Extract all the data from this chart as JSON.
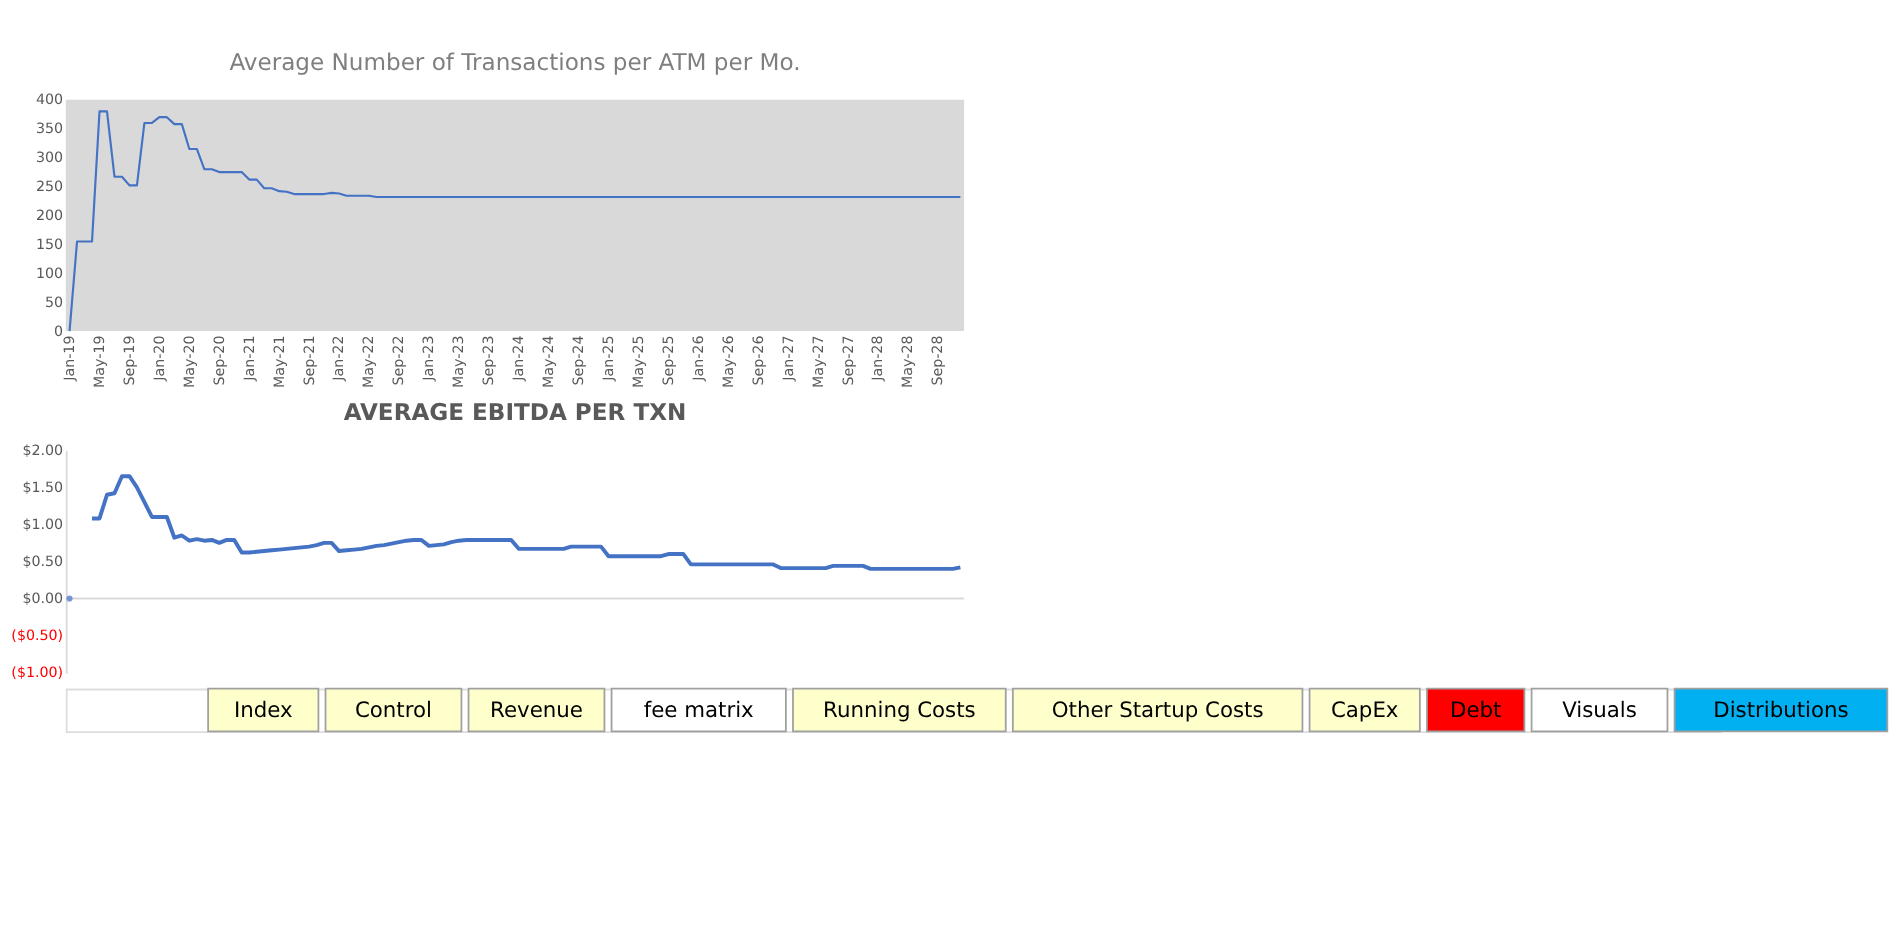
{
  "chart_data": [
    {
      "type": "line",
      "title": "Average Number of Transactions per ATM per Mo.",
      "categories": [
        "Jan-19",
        null,
        null,
        null,
        "May-19",
        null,
        null,
        null,
        "Sep-19",
        null,
        null,
        null,
        "Jan-20",
        null,
        null,
        null,
        "May-20",
        null,
        null,
        null,
        "Sep-20",
        null,
        null,
        null,
        "Jan-21",
        null,
        null,
        null,
        "May-21",
        null,
        null,
        null,
        "Sep-21",
        null,
        null,
        null,
        "Jan-22",
        null,
        null,
        null,
        "May-22",
        null,
        null,
        null,
        "Sep-22",
        null,
        null,
        null,
        "Jan-23",
        null,
        null,
        null,
        "May-23",
        null,
        null,
        null,
        "Sep-23",
        null,
        null,
        null,
        "Jan-24",
        null,
        null,
        null,
        "May-24",
        null,
        null,
        null,
        "Sep-24",
        null,
        null,
        null,
        "Jan-25",
        null,
        null,
        null,
        "May-25",
        null,
        null,
        null,
        "Sep-25",
        null,
        null,
        null,
        "Jan-26",
        null,
        null,
        null,
        "May-26",
        null,
        null,
        null,
        "Sep-26",
        null,
        null,
        null,
        "Jan-27",
        null,
        null,
        null,
        "May-27",
        null,
        null,
        null,
        "Sep-27",
        null,
        null,
        null,
        "Jan-28",
        null,
        null,
        null,
        "May-28",
        null,
        null,
        null,
        "Sep-28",
        null,
        null,
        null
      ],
      "series": [
        {
          "color": "#4472c4",
          "values": [
            0,
            155,
            155,
            155,
            380,
            380,
            267,
            267,
            252,
            252,
            360,
            360,
            370,
            370,
            358,
            358,
            315,
            315,
            280,
            280,
            275,
            275,
            275,
            275,
            262,
            262,
            247,
            247,
            242,
            241,
            237,
            237,
            237,
            237,
            237,
            239,
            238,
            234,
            234,
            234,
            234,
            232,
            232,
            232,
            232,
            232,
            232,
            232,
            232,
            232,
            232,
            232,
            232,
            232,
            232,
            232,
            232,
            232,
            232,
            232,
            232,
            232,
            232,
            232,
            232,
            232,
            232,
            232,
            232,
            232,
            232,
            232,
            232,
            232,
            232,
            232,
            232,
            232,
            232,
            232,
            232,
            232,
            232,
            232,
            232,
            232,
            232,
            232,
            232,
            232,
            232,
            232,
            232,
            232,
            232,
            232,
            232,
            232,
            232,
            232,
            232,
            232,
            232,
            232,
            232,
            232,
            232,
            232,
            232,
            232,
            232,
            232,
            232,
            232,
            232,
            232,
            232,
            232,
            232,
            232
          ]
        }
      ],
      "ylim": [
        0,
        400
      ],
      "yticks": [
        0,
        50,
        100,
        150,
        200,
        250,
        300,
        350,
        400
      ],
      "grid": false,
      "legend": false
    },
    {
      "type": "line",
      "title": "AVERAGE EBITDA PER TXN",
      "categories": [
        null,
        null,
        null,
        null,
        null,
        null,
        null,
        null,
        null,
        null,
        null,
        null,
        null,
        null,
        null,
        null,
        null,
        null,
        null,
        null,
        null,
        null,
        null,
        null,
        null,
        null,
        null,
        null,
        null,
        null,
        null,
        null,
        null,
        null,
        null,
        null,
        null,
        null,
        null,
        null,
        null,
        null,
        null,
        null,
        null,
        null,
        null,
        null,
        null,
        null,
        null,
        null,
        null,
        null,
        null,
        null,
        null,
        null,
        null,
        null,
        null,
        null,
        null,
        null,
        null,
        null,
        null,
        null,
        null,
        null,
        null,
        null,
        null,
        null,
        null,
        null,
        null,
        null,
        null,
        null,
        null,
        null,
        null,
        null,
        null,
        null,
        null,
        null,
        null,
        null,
        null,
        null,
        null,
        null,
        null,
        null,
        null,
        null,
        null,
        null,
        null,
        null,
        null,
        null,
        null,
        null,
        null,
        null,
        null,
        null,
        null,
        null,
        null,
        null,
        null,
        null,
        null,
        null,
        null,
        null
      ],
      "series": [
        {
          "color": "#4472c4",
          "values": [
            0,
            null,
            null,
            1.08,
            1.08,
            1.4,
            1.42,
            1.65,
            1.65,
            1.5,
            1.3,
            1.1,
            1.1,
            1.1,
            0.82,
            0.85,
            0.78,
            0.8,
            0.78,
            0.79,
            0.75,
            0.79,
            0.79,
            0.62,
            0.62,
            0.63,
            0.64,
            0.65,
            0.66,
            0.67,
            0.68,
            0.69,
            0.7,
            0.72,
            0.75,
            0.75,
            0.64,
            0.65,
            0.66,
            0.67,
            0.69,
            0.71,
            0.72,
            0.74,
            0.76,
            0.78,
            0.79,
            0.79,
            0.71,
            0.72,
            0.73,
            0.76,
            0.78,
            0.79,
            0.79,
            0.79,
            0.79,
            0.79,
            0.79,
            0.79,
            0.67,
            0.67,
            0.67,
            0.67,
            0.67,
            0.67,
            0.67,
            0.7,
            0.7,
            0.7,
            0.7,
            0.7,
            0.57,
            0.57,
            0.57,
            0.57,
            0.57,
            0.57,
            0.57,
            0.57,
            0.6,
            0.6,
            0.6,
            0.46,
            0.46,
            0.46,
            0.46,
            0.46,
            0.46,
            0.46,
            0.46,
            0.46,
            0.46,
            0.46,
            0.46,
            0.41,
            0.41,
            0.41,
            0.41,
            0.41,
            0.41,
            0.41,
            0.44,
            0.44,
            0.44,
            0.44,
            0.44,
            0.4,
            0.4,
            0.4,
            0.4,
            0.4,
            0.4,
            0.4,
            0.4,
            0.4,
            0.4,
            0.4,
            0.4,
            0.42
          ]
        }
      ],
      "ylim": [
        -1,
        2
      ],
      "yticks": [
        {
          "value": 2,
          "label": "$2.00"
        },
        {
          "value": 1.5,
          "label": "$1.50"
        },
        {
          "value": 1,
          "label": "$1.00"
        },
        {
          "value": 0.5,
          "label": "$0.50"
        },
        {
          "value": 0,
          "label": "$0.00"
        },
        {
          "value": -0.5,
          "label": "($0.50)"
        },
        {
          "value": -1,
          "label": "($1.00)"
        }
      ],
      "ref_lines": [
        {
          "axis": "y",
          "value": 0,
          "color": "#d9d9d9"
        }
      ],
      "grid": false,
      "legend": false
    },
    {
      "type": "other",
      "annotations": [
        "Index",
        "Control",
        "Revenue",
        "fee matrix",
        "Running Costs",
        "Other Startup Costs",
        "CapEx",
        "Debt",
        "Visuals",
        "Distributions"
      ],
      "colors": [
        "#ffffcc",
        "#ffffcc",
        "#ffffcc",
        "#ffffff",
        "#ffffcc",
        "#ffffcc",
        "#ffffcc",
        "#ff0000",
        "#ffffff",
        "#00b0f0"
      ]
    }
  ]
}
